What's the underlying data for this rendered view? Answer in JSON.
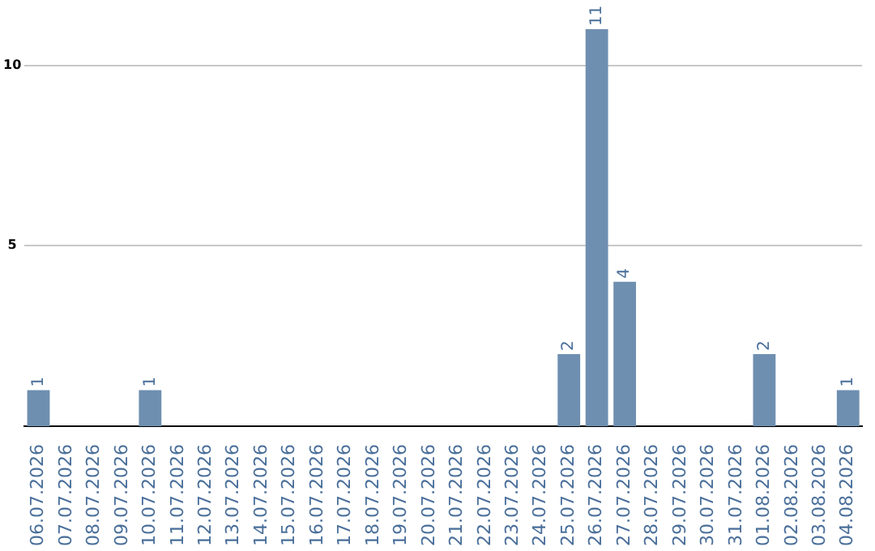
{
  "chart_data": {
    "type": "bar",
    "categories": [
      "06.07.2026",
      "07.07.2026",
      "08.07.2026",
      "09.07.2026",
      "10.07.2026",
      "11.07.2026",
      "12.07.2026",
      "13.07.2026",
      "14.07.2026",
      "15.07.2026",
      "16.07.2026",
      "17.07.2026",
      "18.07.2026",
      "19.07.2026",
      "20.07.2026",
      "21.07.2026",
      "22.07.2026",
      "23.07.2026",
      "24.07.2026",
      "25.07.2026",
      "26.07.2026",
      "27.07.2026",
      "28.07.2026",
      "29.07.2026",
      "30.07.2026",
      "31.07.2026",
      "01.08.2026",
      "02.08.2026",
      "03.08.2026",
      "04.08.2026"
    ],
    "values": [
      1,
      0,
      0,
      0,
      1,
      0,
      0,
      0,
      0,
      0,
      0,
      0,
      0,
      0,
      0,
      0,
      0,
      0,
      0,
      2,
      11,
      4,
      0,
      0,
      0,
      0,
      2,
      0,
      0,
      1
    ],
    "value_labels": [
      "1",
      null,
      null,
      null,
      "1",
      null,
      null,
      null,
      null,
      null,
      null,
      null,
      null,
      null,
      null,
      null,
      null,
      null,
      null,
      "2",
      "11",
      "4",
      null,
      null,
      null,
      null,
      "2",
      null,
      null,
      "1"
    ],
    "color": "#6f8fb0",
    "ylim": [
      0,
      11
    ],
    "yticks": [
      5,
      10
    ],
    "grid": "y",
    "legend": false
  }
}
